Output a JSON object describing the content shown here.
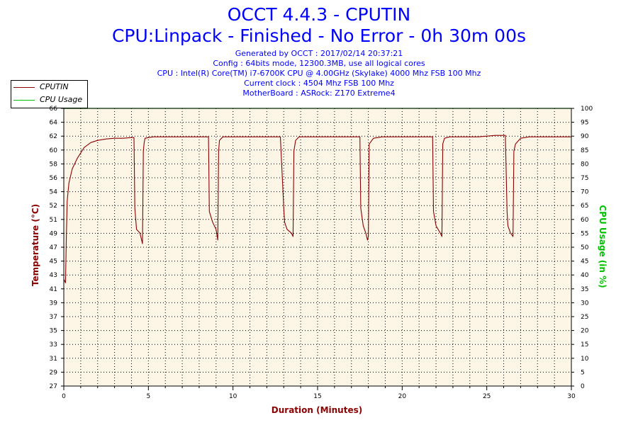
{
  "header": {
    "title": "OCCT 4.4.3 - CPUTIN",
    "subtitle": "CPU:Linpack - Finished - No Error - 0h 30m 00s",
    "info_lines": [
      "Generated by OCCT : 2017/02/14 20:37:21",
      "Config : 64bits mode, 12300.3MB, use all logical cores",
      "CPU : Intel(R) Core(TM) i7-6700K CPU @ 4.00GHz (Skylake) 4000 Mhz FSB 100 Mhz",
      "Current clock : 4504 Mhz FSB 100 Mhz",
      "MotherBoard : ASRock: Z170 Extreme4"
    ]
  },
  "legend": {
    "items": [
      {
        "label": "CPUTIN",
        "color": "#8b0000"
      },
      {
        "label": "CPU Usage",
        "color": "#00c000"
      }
    ]
  },
  "chart_data": {
    "type": "line",
    "title": "OCCT 4.4.3 - CPUTIN",
    "xlabel": "Duration (Minutes)",
    "ylabel": "Temperature (°C)",
    "y2label": "CPU Usage (in %)",
    "xlim": [
      0,
      30
    ],
    "ylim": [
      27,
      66
    ],
    "y2lim": [
      0,
      100
    ],
    "x_ticks": [
      0,
      5,
      10,
      15,
      20,
      25,
      30
    ],
    "y_tick_labels": [
      "27",
      "29",
      "31",
      "33",
      "35",
      "37",
      "39",
      "41",
      "43",
      "45",
      "47",
      "49",
      "51",
      "52",
      "54",
      "56",
      "58",
      "60",
      "62",
      "64",
      "66"
    ],
    "y2_ticks": [
      0,
      5,
      10,
      15,
      20,
      25,
      30,
      35,
      40,
      45,
      50,
      55,
      60,
      65,
      70,
      75,
      80,
      85,
      90,
      95,
      100
    ],
    "background": "#fdf5e6",
    "series": [
      {
        "name": "CPUTIN",
        "color": "#8b0000",
        "axis": "left",
        "x": [
          0,
          0.1,
          0.15,
          0.2,
          0.3,
          0.5,
          0.8,
          1.2,
          1.6,
          2,
          2.5,
          3,
          3.5,
          4,
          4.15,
          4.2,
          4.3,
          4.5,
          4.65,
          4.7,
          4.75,
          4.8,
          5.0,
          5.3,
          5.7,
          6.5,
          7.5,
          8.3,
          8.55,
          8.6,
          8.8,
          9.0,
          9.1,
          9.15,
          9.2,
          9.4,
          9.7,
          10.3,
          11,
          12,
          12.8,
          13.0,
          13.05,
          13.2,
          13.45,
          13.55,
          13.6,
          13.7,
          13.9,
          14.3,
          15,
          16,
          17.2,
          17.5,
          17.55,
          17.7,
          17.85,
          17.95,
          18.0,
          18.05,
          18.3,
          18.8,
          19.5,
          20.5,
          21.2,
          21.6,
          21.8,
          21.85,
          22.0,
          22.25,
          22.35,
          22.4,
          22.5,
          22.8,
          23.5,
          24.5,
          25.5,
          26.1,
          26.2,
          26.25,
          26.4,
          26.55,
          26.6,
          26.7,
          27,
          27.5,
          28,
          29,
          30
        ],
        "y": [
          42,
          41.5,
          48,
          53,
          55.5,
          57.5,
          59,
          60.5,
          61.2,
          61.5,
          61.7,
          61.8,
          61.8,
          61.9,
          61.9,
          52,
          49,
          48.5,
          47,
          60,
          61.2,
          61.8,
          61.9,
          62,
          62,
          62,
          62,
          62,
          62,
          51.5,
          50,
          49,
          47.5,
          60,
          61.5,
          62,
          62,
          62,
          62,
          62,
          62,
          52,
          50,
          49,
          48.5,
          48,
          60,
          61.5,
          62,
          62,
          62,
          62,
          62,
          62,
          52,
          49.5,
          48.5,
          47.5,
          48,
          61,
          61.8,
          62,
          62,
          62,
          62,
          62,
          62,
          51.5,
          49.5,
          48.5,
          48,
          61,
          61.8,
          62,
          62,
          62,
          62.2,
          62.2,
          51.5,
          49.5,
          48.5,
          48,
          60,
          61,
          61.8,
          62,
          62,
          62,
          62
        ]
      },
      {
        "name": "CPU Usage",
        "color": "#00c000",
        "axis": "right",
        "x": [
          0,
          30
        ],
        "y": [
          100,
          100
        ]
      }
    ]
  }
}
